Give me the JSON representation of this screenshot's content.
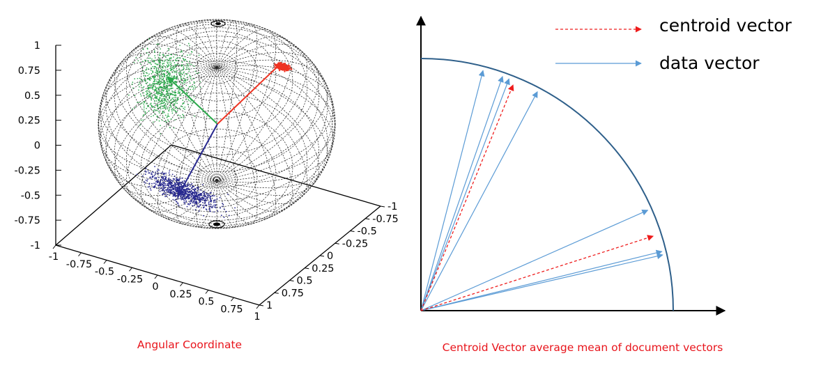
{
  "left_figure": {
    "caption": "Angular Coordinate",
    "z_ticks": [
      "1",
      "0.75",
      "0.5",
      "0.25",
      "0",
      "-0.25",
      "-0.5",
      "-0.75",
      "-1"
    ],
    "x_ticks": [
      "-1",
      "-0.75",
      "-0.5",
      "-0.25",
      "0",
      "0.25",
      "0.5",
      "0.75",
      "1"
    ],
    "y_ticks": [
      "-1",
      "-0.75",
      "-0.5",
      "-0.25",
      "0",
      "0.25",
      "0.5",
      "0.75",
      "1"
    ],
    "clusters": [
      {
        "name": "green",
        "color": "#2aa84a"
      },
      {
        "name": "red",
        "color": "#ee3322"
      },
      {
        "name": "blue",
        "color": "#27288f"
      }
    ]
  },
  "right_figure": {
    "caption": "Centroid Vector average mean of document vectors",
    "legend": [
      {
        "label": "centroid vector",
        "style": "dashed",
        "color": "#ee1c1c"
      },
      {
        "label": "data vector",
        "style": "solid",
        "color": "#5b9bd5"
      }
    ],
    "arc_color": "#2e5f8a",
    "data_vector_angles_deg": [
      75.5,
      70.8,
      69.2,
      62.0,
      23.9,
      13.8,
      13.0
    ],
    "centroid_vector_angles_deg": [
      67.8,
      17.8
    ]
  }
}
